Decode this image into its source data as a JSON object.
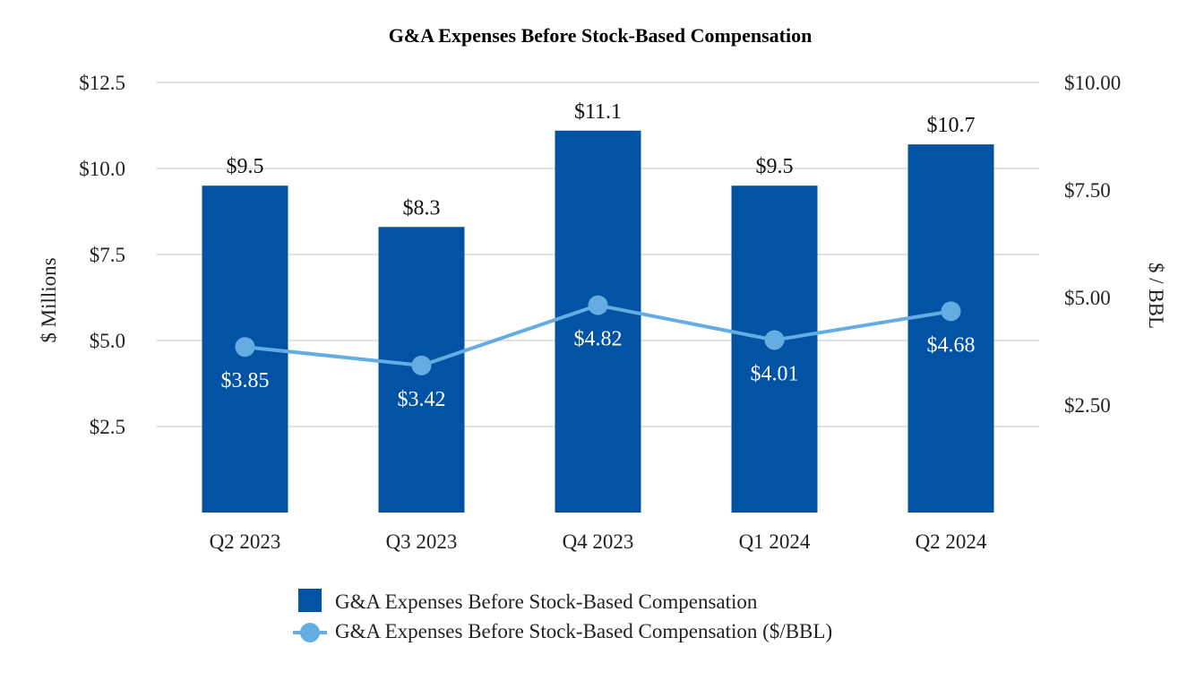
{
  "chart_data": {
    "type": "bar+line",
    "title": "G&A Expenses Before Stock-Based Compensation",
    "categories": [
      "Q2 2023",
      "Q3 2023",
      "Q4 2023",
      "Q1 2024",
      "Q2 2024"
    ],
    "series": [
      {
        "name": "G&A Expenses Before Stock-Based Compensation",
        "type": "bar",
        "axis": "left",
        "values": [
          9.5,
          8.3,
          11.1,
          9.5,
          10.7
        ],
        "labels": [
          "$9.5",
          "$8.3",
          "$11.1",
          "$9.5",
          "$10.7"
        ],
        "color": "#0353a4"
      },
      {
        "name": "G&A Expenses Before Stock-Based Compensation ($/BBL)",
        "type": "line",
        "axis": "right",
        "values": [
          3.85,
          3.42,
          4.82,
          4.01,
          4.68
        ],
        "labels": [
          "$3.85",
          "$3.42",
          "$4.82",
          "$4.01",
          "$4.68"
        ],
        "color": "#64ade3"
      }
    ],
    "left_axis": {
      "label": "$ Millions",
      "ylim": [
        0,
        12.5
      ],
      "ticks": [
        2.5,
        5.0,
        7.5,
        10.0,
        12.5
      ],
      "tick_labels": [
        "$2.5",
        "$5.0",
        "$7.5",
        "$10.0",
        "$12.5"
      ]
    },
    "right_axis": {
      "label": "$ / BBL",
      "ylim": [
        0,
        10.0
      ],
      "ticks": [
        2.5,
        5.0,
        7.5,
        10.0
      ],
      "tick_labels": [
        "$2.50",
        "$5.00",
        "$7.50",
        "$10.00"
      ]
    },
    "grid": true,
    "legend": "bottom"
  }
}
